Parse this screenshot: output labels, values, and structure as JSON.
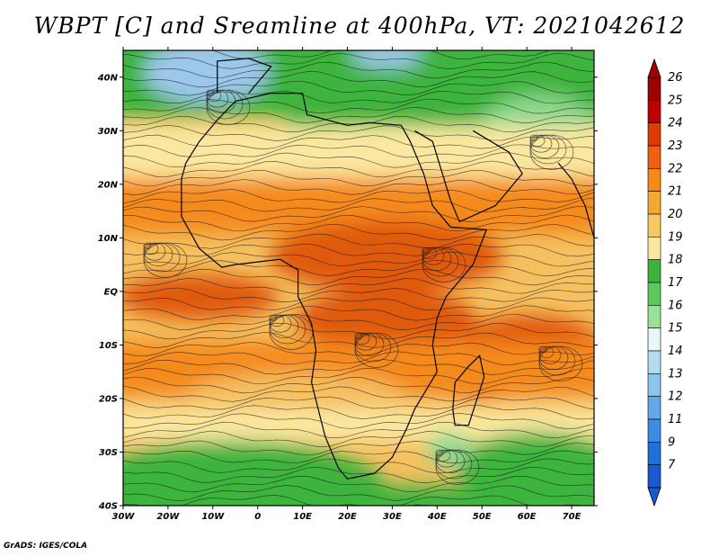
{
  "title": "WBPT [C] and Sreamline at 400hPa, VT: 2021042612",
  "credit": "GrADS: IGES/COLA",
  "lat_labels": [
    "40N",
    "30N",
    "20N",
    "10N",
    "EQ",
    "10S",
    "20S",
    "30S",
    "40S"
  ],
  "lon_labels": [
    "30W",
    "20W",
    "10W",
    "0",
    "10E",
    "20E",
    "30E",
    "40E",
    "50E",
    "60E",
    "70E"
  ],
  "colorbar": {
    "levels": [
      "26",
      "25",
      "24",
      "23",
      "22",
      "21",
      "20",
      "19",
      "18",
      "17",
      "16",
      "15",
      "14",
      "13",
      "12",
      "11",
      "9",
      "7"
    ],
    "colors": [
      "#9c0000",
      "#c00000",
      "#e03a00",
      "#f06010",
      "#f58a1a",
      "#f5a830",
      "#f5c860",
      "#fbe8a0",
      "#3cb43c",
      "#5ec85e",
      "#9ae09a",
      "#e8f8f8",
      "#b4dcf0",
      "#8cc4ec",
      "#64a8e8",
      "#3c8ce4",
      "#2070dc",
      "#1a5ad0"
    ]
  },
  "field_colors": {
    "hot": "#e05a10",
    "warm": "#f58a1a",
    "mild": "#f5c060",
    "cool": "#fbe8a0",
    "green": "#3cb43c",
    "light_green": "#8ed88e",
    "blue": "#9cc8ec"
  }
}
